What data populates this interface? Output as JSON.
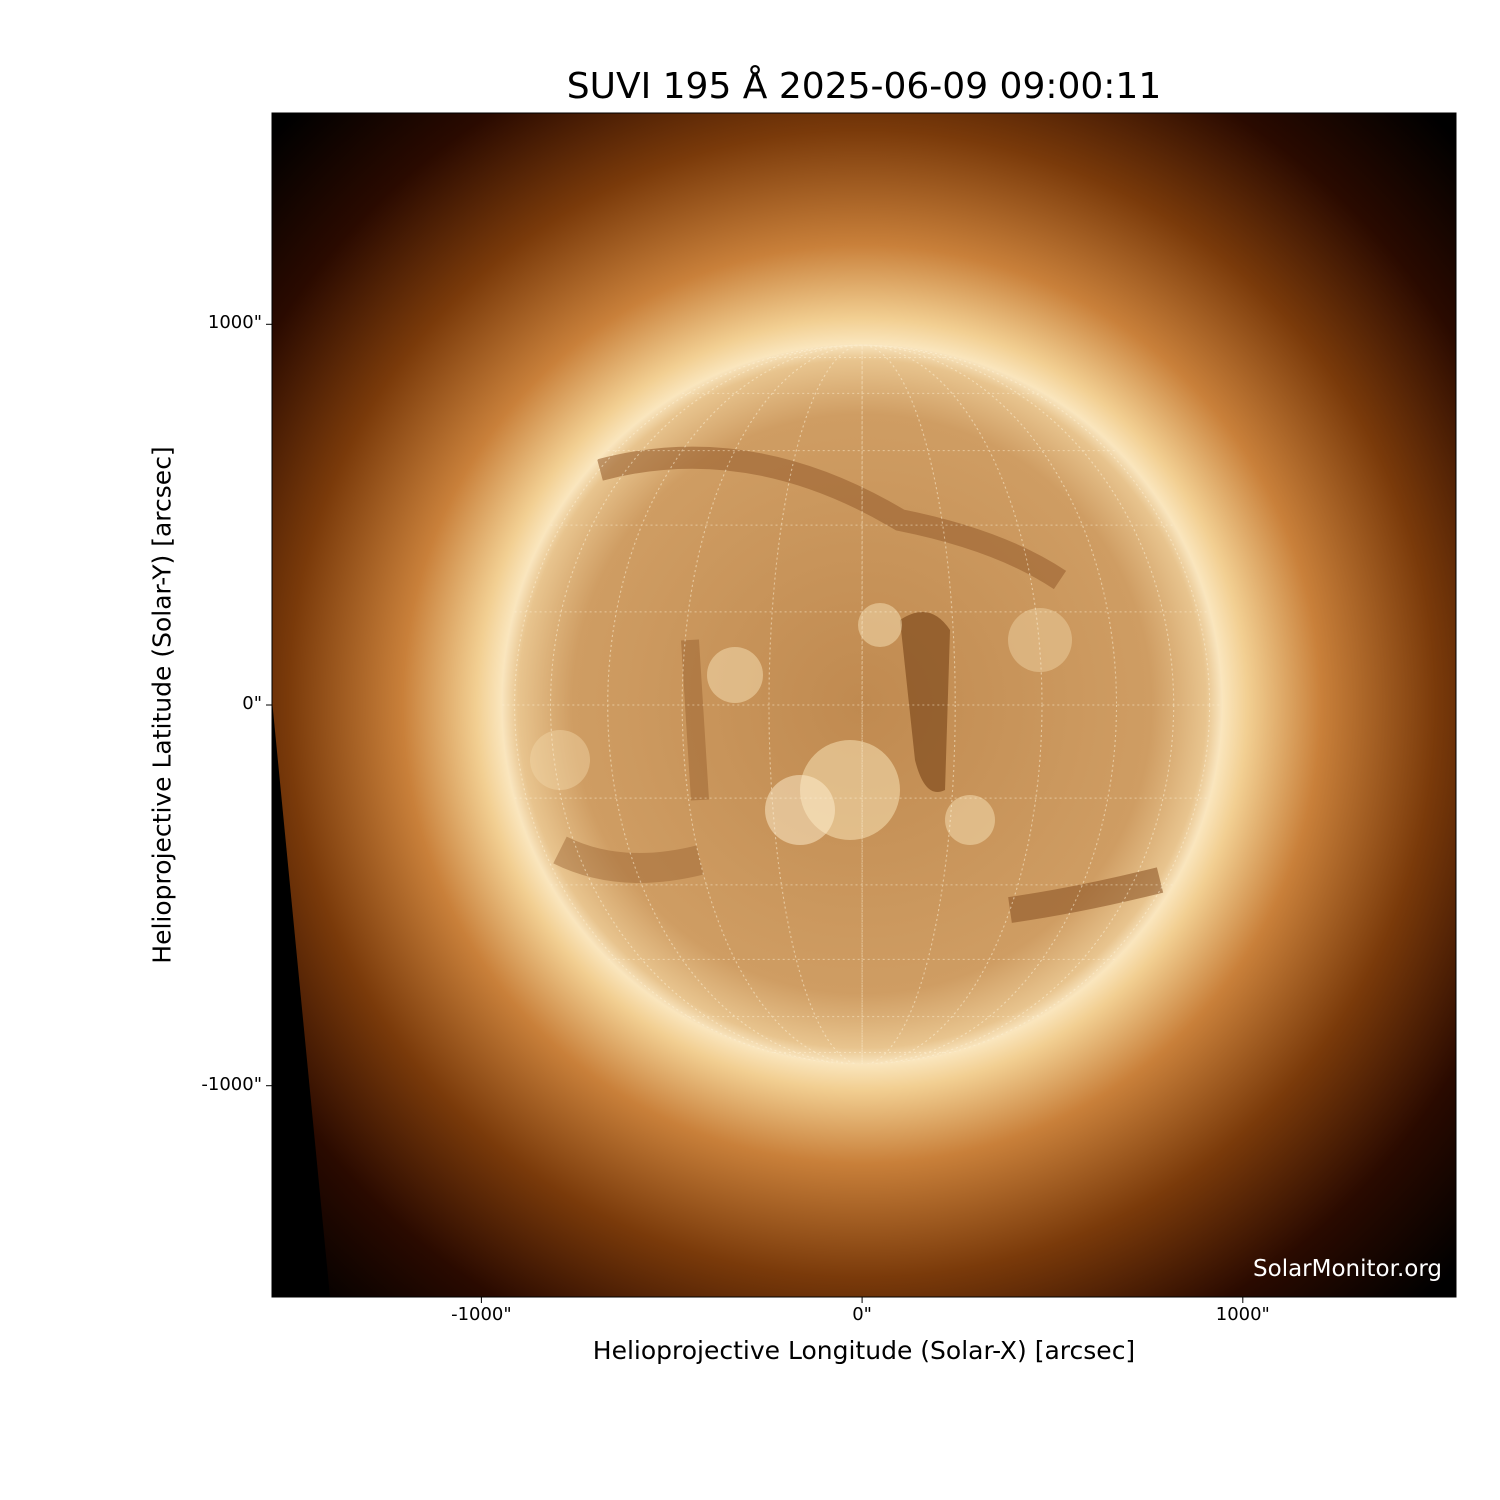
{
  "chart_data": {
    "type": "heatmap",
    "title": "SUVI 195 Å 2025-06-09 09:00:11",
    "xlabel": "Helioprojective Longitude (Solar-X) [arcsec]",
    "ylabel": "Helioprojective Latitude (Solar-Y) [arcsec]",
    "xlim": [
      -1550,
      1560
    ],
    "ylim": [
      -1555,
      1555
    ],
    "xticks": [
      {
        "value": -1000,
        "label": "-1000\""
      },
      {
        "value": 0,
        "label": "0\""
      },
      {
        "value": 1000,
        "label": "1000\""
      }
    ],
    "yticks": [
      {
        "value": 1000,
        "label": "1000\""
      },
      {
        "value": 0,
        "label": "0\""
      },
      {
        "value": -1000,
        "label": "-1000\""
      }
    ],
    "solar_radius_arcsec": 945,
    "colormap": "sdoaia193-like copper",
    "grid": "heliographic lon/lat grid, dotted",
    "colors": {
      "disk": "#c9955a",
      "limb": "#fbe9c4",
      "corona": "#7a3a0a",
      "background": "#000000"
    }
  },
  "watermark": "SolarMonitor.org"
}
